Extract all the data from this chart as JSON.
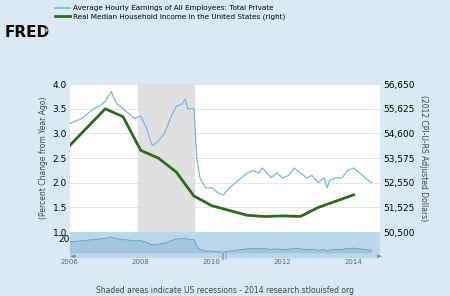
{
  "title_fred": "FRED",
  "legend1": "Average Hourly Earnings of All Employees: Total Private",
  "legend2": "Real Median Household Income in the United States (right)",
  "ylabel_left": "(Percent Change from Year Ago)",
  "ylabel_right": "(2012 CPI-U-RS Adjusted Dollars)",
  "footnote": "Shaded areas indicate US recessions - 2014 research.stlouisfed.org",
  "ylim_left": [
    1.0,
    4.0
  ],
  "ylim_right": [
    50500,
    56650
  ],
  "yticks_left": [
    1.0,
    1.5,
    2.0,
    2.5,
    3.0,
    3.5,
    4.0
  ],
  "yticks_right": [
    50500,
    51525,
    52550,
    53575,
    54600,
    55625,
    56650
  ],
  "xlim": [
    2006.0,
    2014.75
  ],
  "xticks": [
    2006,
    2008,
    2010,
    2012,
    2014
  ],
  "recession_start": 2007.92,
  "recession_end": 2009.5,
  "bg_color": "#daeaf5",
  "plot_bg": "#ffffff",
  "line1_color": "#7ab8d9",
  "line2_color": "#2e6b1e",
  "minimap_bg": "#bcd6ea",
  "blue_line_x": [
    2006.0,
    2006.17,
    2006.33,
    2006.5,
    2006.67,
    2006.83,
    2007.0,
    2007.08,
    2007.17,
    2007.25,
    2007.33,
    2007.42,
    2007.5,
    2007.67,
    2007.83,
    2008.0,
    2008.17,
    2008.25,
    2008.33,
    2008.5,
    2008.67,
    2008.83,
    2009.0,
    2009.17,
    2009.25,
    2009.33,
    2009.5,
    2009.58,
    2009.67,
    2009.83,
    2010.0,
    2010.17,
    2010.33,
    2010.5,
    2010.67,
    2010.83,
    2011.0,
    2011.17,
    2011.33,
    2011.42,
    2011.5,
    2011.67,
    2011.83,
    2012.0,
    2012.17,
    2012.33,
    2012.5,
    2012.67,
    2012.83,
    2013.0,
    2013.17,
    2013.25,
    2013.33,
    2013.5,
    2013.67,
    2013.83,
    2014.0,
    2014.17,
    2014.33,
    2014.5
  ],
  "blue_line_y": [
    3.2,
    3.25,
    3.3,
    3.4,
    3.5,
    3.55,
    3.65,
    3.75,
    3.85,
    3.7,
    3.6,
    3.55,
    3.5,
    3.4,
    3.3,
    3.35,
    3.1,
    2.9,
    2.75,
    2.85,
    3.0,
    3.3,
    3.55,
    3.6,
    3.7,
    3.5,
    3.5,
    2.5,
    2.1,
    1.9,
    1.9,
    1.8,
    1.75,
    1.9,
    2.0,
    2.1,
    2.2,
    2.25,
    2.2,
    2.3,
    2.25,
    2.1,
    2.2,
    2.1,
    2.15,
    2.3,
    2.2,
    2.1,
    2.15,
    2.0,
    2.1,
    1.9,
    2.05,
    2.1,
    2.1,
    2.25,
    2.3,
    2.2,
    2.1,
    2.0
  ],
  "green_line_x": [
    2006.0,
    2007.0,
    2007.5,
    2008.0,
    2008.5,
    2009.0,
    2009.25,
    2009.5,
    2010.0,
    2010.5,
    2011.0,
    2011.5,
    2012.0,
    2012.5,
    2013.0,
    2014.0
  ],
  "green_line_y": [
    54100,
    55625,
    55300,
    53900,
    53575,
    53000,
    52500,
    52000,
    51600,
    51400,
    51200,
    51150,
    51175,
    51150,
    51525,
    52050
  ]
}
